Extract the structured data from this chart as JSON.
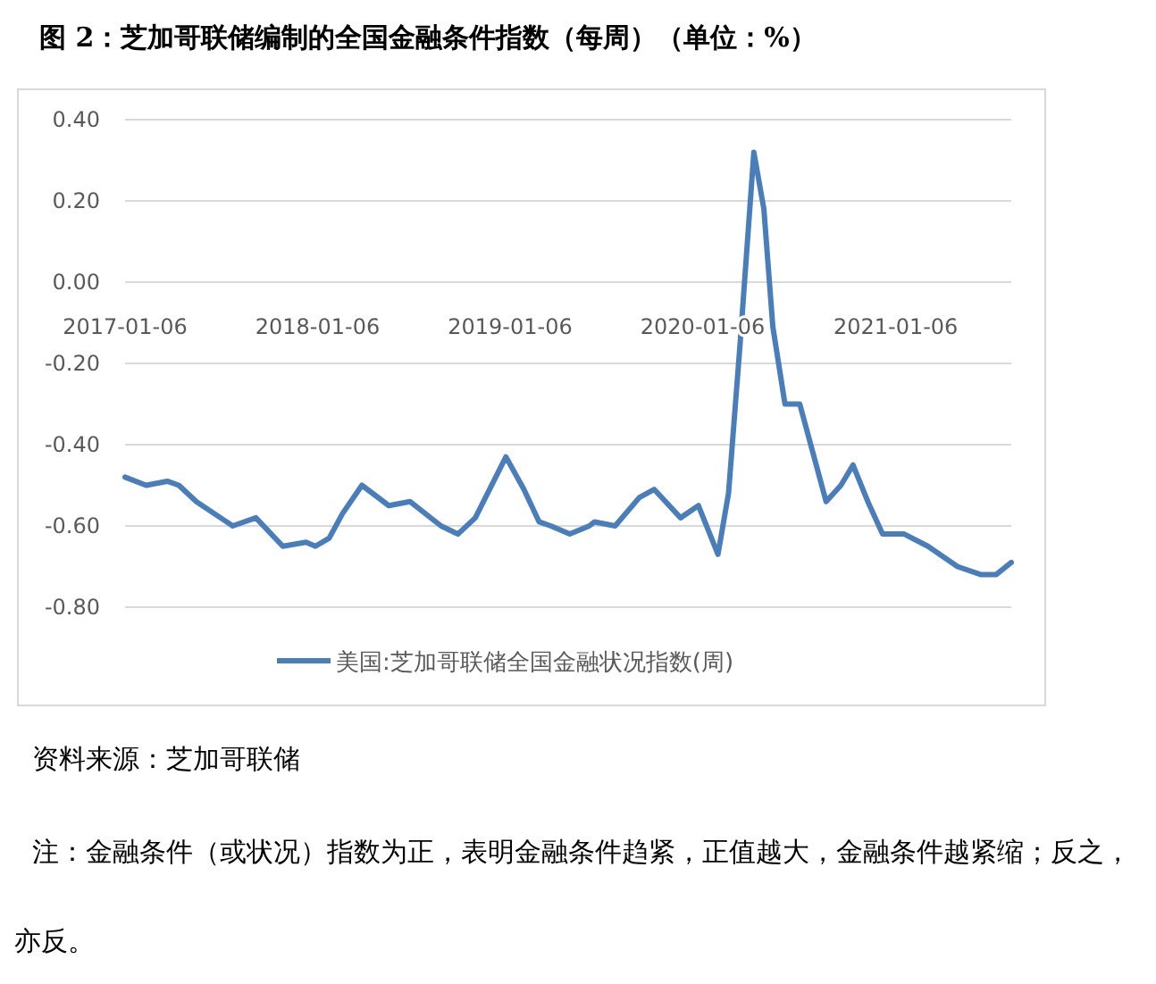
{
  "chart_data": {
    "type": "line",
    "title": "图 2：芝加哥联储编制的全国金融条件指数（每周）（单位：%）",
    "annotations": [
      "资料来源：芝加哥联储",
      "注：金融条件（或状况）指数为正，表明金融条件趋紧，正值越大，金融条件越紧缩；反之，亦反。"
    ],
    "x": [
      "2017-01-06",
      "2017-02-15",
      "2017-03-27",
      "2017-04-18",
      "2017-05-21",
      "2017-07-29",
      "2017-09-11",
      "2017-11-01",
      "2017-12-15",
      "2018-01-02",
      "2018-01-28",
      "2018-02-22",
      "2018-03-31",
      "2018-05-21",
      "2018-06-30",
      "2018-08-28",
      "2018-09-29",
      "2018-11-01",
      "2018-12-29",
      "2019-02-01",
      "2019-03-02",
      "2019-03-24",
      "2019-04-29",
      "2019-06-05",
      "2019-06-15",
      "2019-07-24",
      "2019-09-08",
      "2019-10-06",
      "2019-11-25",
      "2019-12-29",
      "2020-02-04",
      "2020-02-24",
      "2020-03-17",
      "2020-04-12",
      "2020-05-01",
      "2020-05-18",
      "2020-06-10",
      "2020-07-08",
      "2020-08-27",
      "2020-09-24",
      "2020-10-17",
      "2020-11-14",
      "2020-12-12",
      "2021-01-22",
      "2021-03-08",
      "2021-05-03",
      "2021-06-17",
      "2021-07-15",
      "2021-08-13"
    ],
    "series": [
      {
        "name": "美国:芝加哥联储全国金融状况指数(周)",
        "color": "#4a7ebb",
        "values": [
          -0.48,
          -0.5,
          -0.49,
          -0.5,
          -0.54,
          -0.6,
          -0.58,
          -0.65,
          -0.64,
          -0.65,
          -0.63,
          -0.57,
          -0.5,
          -0.55,
          -0.54,
          -0.6,
          -0.62,
          -0.58,
          -0.43,
          -0.51,
          -0.59,
          -0.6,
          -0.62,
          -0.6,
          -0.59,
          -0.6,
          -0.53,
          -0.51,
          -0.58,
          -0.55,
          -0.67,
          -0.52,
          -0.15,
          0.32,
          0.18,
          -0.11,
          -0.3,
          -0.3,
          -0.54,
          -0.5,
          -0.45,
          -0.54,
          -0.62,
          -0.62,
          -0.65,
          -0.7,
          -0.72,
          -0.72,
          -0.69
        ]
      }
    ],
    "xlim": [
      "2017-01-06",
      "2021-08-13"
    ],
    "ylim": [
      -0.8,
      0.4
    ],
    "xticks": [
      "2017-01-06",
      "2018-01-06",
      "2019-01-06",
      "2020-01-06",
      "2021-01-06"
    ],
    "yticks": [
      {
        "value": 0.4,
        "label": "0.40"
      },
      {
        "value": 0.2,
        "label": "0.20"
      },
      {
        "value": 0,
        "label": "0.00"
      },
      {
        "value": -0.2,
        "label": "-0.20"
      },
      {
        "value": -0.4,
        "label": "-0.40"
      },
      {
        "value": -0.6,
        "label": "-0.60"
      },
      {
        "value": -0.8,
        "label": "-0.80"
      }
    ],
    "grid": "y",
    "legend": "bottom"
  }
}
